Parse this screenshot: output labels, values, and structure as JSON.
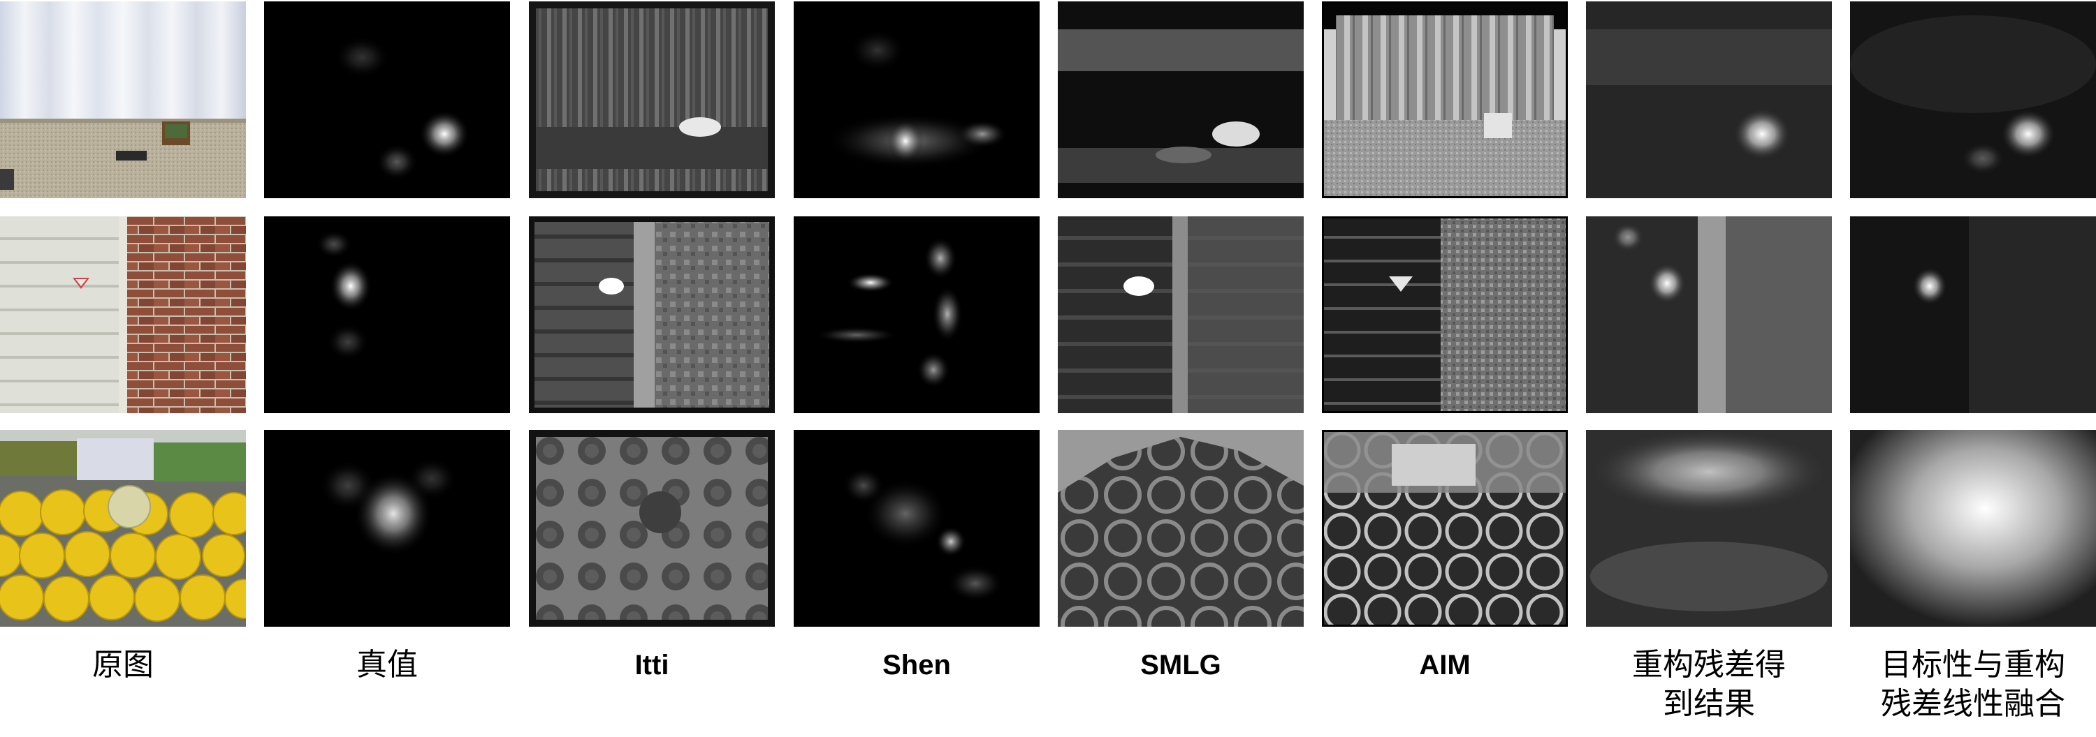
{
  "figure": {
    "columns": [
      {
        "key": "original",
        "label": "原图"
      },
      {
        "key": "ground_truth",
        "label": "真值"
      },
      {
        "key": "itti",
        "label": "Itti"
      },
      {
        "key": "shen",
        "label": "Shen"
      },
      {
        "key": "smlg",
        "label": "SMLG"
      },
      {
        "key": "aim",
        "label": "AIM"
      },
      {
        "key": "reconstruction_residual",
        "label": "重构残差得\n到结果"
      },
      {
        "key": "objectness_fusion",
        "label": "目标性与重构\n残差线性融合"
      }
    ],
    "rows": [
      {
        "key": "curtain_room"
      },
      {
        "key": "brick_wall_sign"
      },
      {
        "key": "melons"
      }
    ],
    "colors": {
      "background": "#ffffff",
      "map_background": "#000000",
      "melon_yellow": "#e8c31a",
      "brick": "#8a4a36"
    }
  }
}
